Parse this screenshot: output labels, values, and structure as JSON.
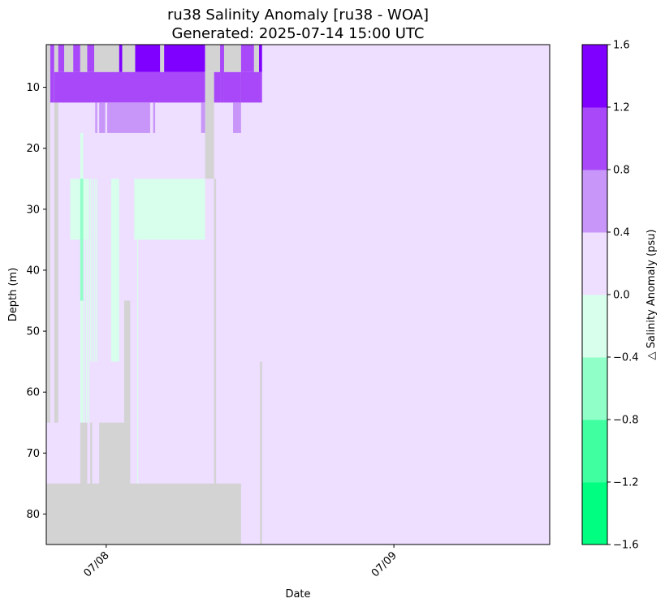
{
  "chart_data": {
    "type": "heatmap",
    "title": "ru38 Salinity Anomaly [ru38 - WOA]",
    "subtitle": "Generated: 2025-07-14 15:00 UTC",
    "xlabel": "Date",
    "ylabel": "Depth (m)",
    "x_ticks": [
      {
        "value": "2025-07-08",
        "label": "07/08"
      },
      {
        "value": "2025-07-09",
        "label": "07/09"
      }
    ],
    "xlim": [
      "2025-07-07T19:00",
      "2025-07-09T13:00"
    ],
    "ylim": [
      3,
      85
    ],
    "y_inverted": true,
    "y_ticks": [
      10,
      20,
      30,
      40,
      50,
      60,
      70,
      80
    ],
    "grid": false,
    "colorbar": {
      "label": "△ Salinity Anomaly (psu)",
      "ticks": [
        "1.6",
        "1.2",
        "0.8",
        "0.4",
        "0.0",
        "−0.4",
        "−0.8",
        "−1.2",
        "−1.6"
      ],
      "levels": [
        -1.6,
        -1.2,
        -0.8,
        -0.4,
        0.0,
        0.4,
        0.8,
        1.2,
        1.6
      ],
      "colors": [
        "#00ff80",
        "#40ffa0",
        "#90ffc8",
        "#d8ffec",
        "#eedeff",
        "#c896f8",
        "#a848f8",
        "#8000ff"
      ]
    },
    "missing_color": "#d3d3d3",
    "background_class": 4,
    "cells": [
      {
        "t0": "2025-07-07T19:00",
        "t1": "2025-07-09T13:00",
        "d0": 3,
        "d1": 85,
        "class": 4
      },
      {
        "t0": "2025-07-07T19:00",
        "t1": "2025-07-07T19:20",
        "d0": 3,
        "d1": 65,
        "class": null
      },
      {
        "t0": "2025-07-07T19:20",
        "t1": "2025-07-07T19:40",
        "d0": 3,
        "d1": 12.5,
        "class": 6
      },
      {
        "t0": "2025-07-07T19:40",
        "t1": "2025-07-07T20:00",
        "d0": 3,
        "d1": 65,
        "class": null
      },
      {
        "t0": "2025-07-07T20:00",
        "t1": "2025-07-07T20:30",
        "d0": 3,
        "d1": 7.5,
        "class": 6
      },
      {
        "t0": "2025-07-07T20:30",
        "t1": "2025-07-07T21:15",
        "d0": 3,
        "d1": 7.5,
        "class": null
      },
      {
        "t0": "2025-07-07T21:15",
        "t1": "2025-07-07T21:50",
        "d0": 3,
        "d1": 7.5,
        "class": 6
      },
      {
        "t0": "2025-07-07T21:50",
        "t1": "2025-07-07T22:25",
        "d0": 3,
        "d1": 7.5,
        "class": null
      },
      {
        "t0": "2025-07-07T22:25",
        "t1": "2025-07-07T23:00",
        "d0": 3,
        "d1": 7.5,
        "class": 6
      },
      {
        "t0": "2025-07-07T23:00",
        "t1": "2025-07-08T01:05",
        "d0": 3,
        "d1": 7.5,
        "class": null
      },
      {
        "t0": "2025-07-08T01:05",
        "t1": "2025-07-08T01:20",
        "d0": 3,
        "d1": 7.5,
        "class": 7
      },
      {
        "t0": "2025-07-08T01:20",
        "t1": "2025-07-08T02:25",
        "d0": 3,
        "d1": 7.5,
        "class": null
      },
      {
        "t0": "2025-07-08T02:25",
        "t1": "2025-07-08T04:30",
        "d0": 3,
        "d1": 7.5,
        "class": 7
      },
      {
        "t0": "2025-07-08T04:30",
        "t1": "2025-07-08T04:50",
        "d0": 3,
        "d1": 7.5,
        "class": null
      },
      {
        "t0": "2025-07-08T04:50",
        "t1": "2025-07-08T08:15",
        "d0": 3,
        "d1": 7.5,
        "class": 7
      },
      {
        "t0": "2025-07-08T08:15",
        "t1": "2025-07-08T09:30",
        "d0": 3,
        "d1": 7.5,
        "class": null
      },
      {
        "t0": "2025-07-08T09:30",
        "t1": "2025-07-08T09:50",
        "d0": 3,
        "d1": 12.5,
        "class": 6
      },
      {
        "t0": "2025-07-08T09:50",
        "t1": "2025-07-08T11:15",
        "d0": 3,
        "d1": 7.5,
        "class": null
      },
      {
        "t0": "2025-07-08T11:15",
        "t1": "2025-07-08T12:20",
        "d0": 3,
        "d1": 7.5,
        "class": 6
      },
      {
        "t0": "2025-07-08T12:20",
        "t1": "2025-07-08T12:45",
        "d0": 3,
        "d1": 7.5,
        "class": null
      },
      {
        "t0": "2025-07-08T12:45",
        "t1": "2025-07-08T13:00",
        "d0": 3,
        "d1": 7.5,
        "class": 7
      },
      {
        "t0": "2025-07-07T19:40",
        "t1": "2025-07-08T08:15",
        "d0": 7.5,
        "d1": 12.5,
        "class": 6
      },
      {
        "t0": "2025-07-08T08:15",
        "t1": "2025-07-08T09:00",
        "d0": 7.5,
        "d1": 25,
        "class": null
      },
      {
        "t0": "2025-07-08T09:00",
        "t1": "2025-07-08T09:30",
        "d0": 7.5,
        "d1": 12.5,
        "class": 6
      },
      {
        "t0": "2025-07-08T09:50",
        "t1": "2025-07-08T11:15",
        "d0": 7.5,
        "d1": 12.5,
        "class": 6
      },
      {
        "t0": "2025-07-08T11:15",
        "t1": "2025-07-08T13:00",
        "d0": 7.5,
        "d1": 12.5,
        "class": 6
      },
      {
        "t0": "2025-07-07T23:05",
        "t1": "2025-07-07T23:15",
        "d0": 12.5,
        "d1": 17.5,
        "class": 5
      },
      {
        "t0": "2025-07-07T23:25",
        "t1": "2025-07-07T23:55",
        "d0": 12.5,
        "d1": 17.5,
        "class": 5
      },
      {
        "t0": "2025-07-08T00:05",
        "t1": "2025-07-08T03:40",
        "d0": 12.5,
        "d1": 17.5,
        "class": 5
      },
      {
        "t0": "2025-07-08T03:55",
        "t1": "2025-07-08T04:05",
        "d0": 12.5,
        "d1": 17.5,
        "class": 5
      },
      {
        "t0": "2025-07-08T07:55",
        "t1": "2025-07-08T08:15",
        "d0": 12.5,
        "d1": 17.5,
        "class": 5
      },
      {
        "t0": "2025-07-08T10:35",
        "t1": "2025-07-08T11:15",
        "d0": 12.5,
        "d1": 17.5,
        "class": 5
      },
      {
        "t0": "2025-07-07T21:00",
        "t1": "2025-07-07T21:50",
        "d0": 25,
        "d1": 35,
        "class": 3
      },
      {
        "t0": "2025-07-07T21:50",
        "t1": "2025-07-07T22:05",
        "d0": 17.5,
        "d1": 65,
        "class": 3
      },
      {
        "t0": "2025-07-07T21:50",
        "t1": "2025-07-07T22:05",
        "d0": 25,
        "d1": 45,
        "class": 2
      },
      {
        "t0": "2025-07-07T22:05",
        "t1": "2025-07-07T22:30",
        "d0": 25,
        "d1": 35,
        "class": 3
      },
      {
        "t0": "2025-07-07T22:10",
        "t1": "2025-07-07T22:15",
        "d0": 35,
        "d1": 65,
        "class": 3
      },
      {
        "t0": "2025-07-07T22:20",
        "t1": "2025-07-07T22:25",
        "d0": 35,
        "d1": 65,
        "class": 3
      },
      {
        "t0": "2025-07-07T22:30",
        "t1": "2025-07-07T22:35",
        "d0": 25,
        "d1": 65,
        "class": 3
      },
      {
        "t0": "2025-07-07T22:40",
        "t1": "2025-07-07T22:45",
        "d0": 25,
        "d1": 55,
        "class": 3
      },
      {
        "t0": "2025-07-07T22:50",
        "t1": "2025-07-07T22:55",
        "d0": 25,
        "d1": 55,
        "class": 3
      },
      {
        "t0": "2025-07-07T23:00",
        "t1": "2025-07-07T23:05",
        "d0": 25,
        "d1": 55,
        "class": 3
      },
      {
        "t0": "2025-07-07T23:10",
        "t1": "2025-07-07T23:15",
        "d0": 25,
        "d1": 55,
        "class": 3
      },
      {
        "t0": "2025-07-08T00:25",
        "t1": "2025-07-08T01:05",
        "d0": 25,
        "d1": 55,
        "class": 3
      },
      {
        "t0": "2025-07-08T02:20",
        "t1": "2025-07-08T08:15",
        "d0": 25,
        "d1": 35,
        "class": 3
      },
      {
        "t0": "2025-07-08T02:35",
        "t1": "2025-07-08T02:40",
        "d0": 35,
        "d1": 75,
        "class": 3
      },
      {
        "t0": "2025-07-07T21:50",
        "t1": "2025-07-07T22:25",
        "d0": 65,
        "d1": 85,
        "class": null
      },
      {
        "t0": "2025-07-07T22:40",
        "t1": "2025-07-07T22:50",
        "d0": 65,
        "d1": 85,
        "class": null
      },
      {
        "t0": "2025-07-07T23:25",
        "t1": "2025-07-08T02:00",
        "d0": 65,
        "d1": 85,
        "class": null
      },
      {
        "t0": "2025-07-08T01:30",
        "t1": "2025-07-08T02:00",
        "d0": 45,
        "d1": 65,
        "class": null
      },
      {
        "t0": "2025-07-08T09:00",
        "t1": "2025-07-08T09:10",
        "d0": 25,
        "d1": 75,
        "class": null
      },
      {
        "t0": "2025-07-07T19:00",
        "t1": "2025-07-08T11:15",
        "d0": 75,
        "d1": 85,
        "class": null
      },
      {
        "t0": "2025-07-08T12:50",
        "t1": "2025-07-08T13:00",
        "d0": 55,
        "d1": 85,
        "class": null
      }
    ]
  }
}
